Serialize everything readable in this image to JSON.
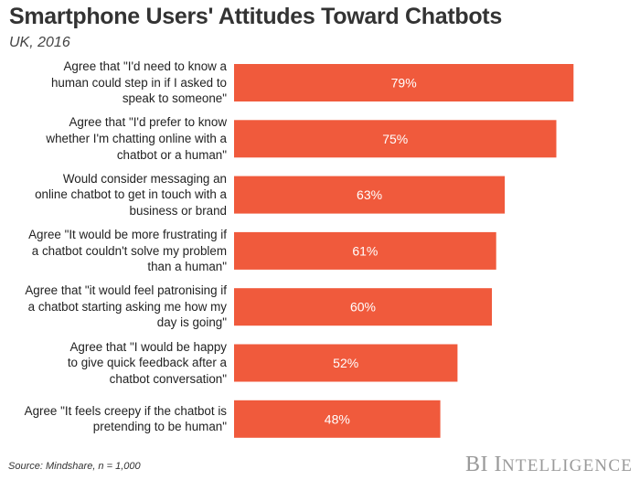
{
  "header": {
    "title": "Smartphone Users' Attitudes Toward Chatbots",
    "subtitle": "UK, 2016"
  },
  "footer": {
    "source": "Source: Mindshare, n = 1,000",
    "brand_initials": "BI",
    "brand_initial_i": "I",
    "brand_rest": "NTELLIGENCE"
  },
  "colors": {
    "bar": "#f05a3c",
    "bar_label": "#ffffff"
  },
  "chart_data": {
    "type": "bar",
    "orientation": "horizontal",
    "title": "Smartphone Users' Attitudes Toward Chatbots",
    "subtitle": "UK, 2016",
    "xlabel": "",
    "ylabel": "",
    "unit": "%",
    "xlim": [
      0,
      100
    ],
    "grid": false,
    "legend": "none",
    "categories": [
      [
        "Agree that \"I'd need to know a",
        "human could step in if I asked to",
        "speak to someone\""
      ],
      [
        "Agree that \"I'd prefer to know",
        "whether I'm chatting online with a",
        "chatbot or a human\""
      ],
      [
        "Would consider messaging an",
        "online chatbot to get in touch with a",
        "business or brand"
      ],
      [
        "Agree \"It would be more frustrating if",
        "a chatbot couldn't solve my problem",
        "than a human\""
      ],
      [
        "Agree that \"it would feel patronising if",
        "a chatbot starting asking me how my",
        "day is going\""
      ],
      [
        "Agree that \"I would be happy",
        "to give quick feedback after a",
        "chatbot conversation\""
      ],
      [
        "Agree \"It feels creepy if the chatbot is",
        "pretending to be human\""
      ]
    ],
    "values": [
      79,
      75,
      63,
      61,
      60,
      52,
      48
    ],
    "value_labels": [
      "79%",
      "75%",
      "63%",
      "61%",
      "60%",
      "52%",
      "48%"
    ]
  }
}
